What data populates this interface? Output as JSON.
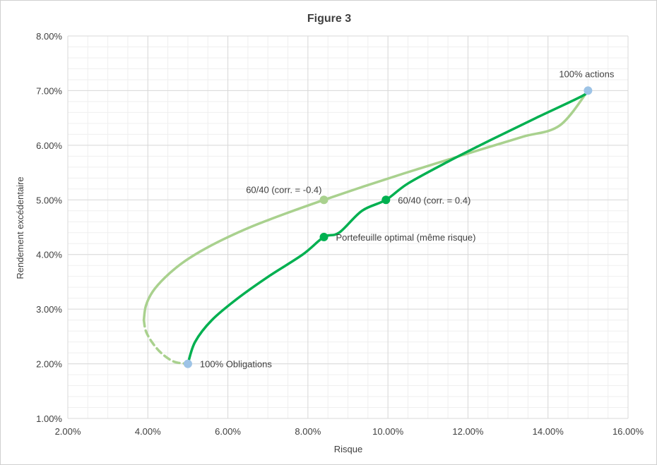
{
  "chart_data": {
    "type": "line",
    "title": "Figure 3",
    "xlabel": "Risque",
    "ylabel": "Rendement excédentaire",
    "xlim": [
      0.02,
      0.16
    ],
    "ylim": [
      0.01,
      0.08
    ],
    "x_ticks": [
      0.02,
      0.04,
      0.06,
      0.08,
      0.1,
      0.12,
      0.14,
      0.16
    ],
    "y_ticks": [
      0.01,
      0.02,
      0.03,
      0.04,
      0.05,
      0.06,
      0.07,
      0.08
    ],
    "x_tick_labels": [
      "2.00%",
      "4.00%",
      "6.00%",
      "8.00%",
      "10.00%",
      "12.00%",
      "14.00%",
      "16.00%"
    ],
    "y_tick_labels": [
      "1.00%",
      "2.00%",
      "3.00%",
      "4.00%",
      "5.00%",
      "6.00%",
      "7.00%",
      "8.00%"
    ],
    "grid": true,
    "colors": {
      "frontier_light": "#a9d18e",
      "frontier_dark": "#00b050",
      "endpoint": "#9dc3e6",
      "grid_major": "#d9d9d9",
      "grid_minor": "#efefef"
    },
    "series": [
      {
        "style": "solid",
        "color": "#a9d18e",
        "points": [
          [
            0.039,
            0.028
          ],
          [
            0.0395,
            0.0306
          ],
          [
            0.0412,
            0.0332
          ],
          [
            0.0443,
            0.0358
          ],
          [
            0.0485,
            0.0384
          ],
          [
            0.0532,
            0.0406
          ],
          [
            0.0589,
            0.0428
          ],
          [
            0.0662,
            0.0452
          ],
          [
            0.0748,
            0.0476
          ],
          [
            0.084,
            0.05
          ],
          [
            0.0937,
            0.0524
          ],
          [
            0.1038,
            0.0548
          ],
          [
            0.1143,
            0.0572
          ],
          [
            0.1249,
            0.0596
          ],
          [
            0.1339,
            0.0616
          ],
          [
            0.1429,
            0.0636
          ],
          [
            0.15,
            0.07
          ]
        ]
      },
      {
        "style": "dashed",
        "color": "#a9d18e",
        "points": [
          [
            0.039,
            0.028
          ],
          [
            0.0395,
            0.026
          ],
          [
            0.041,
            0.024
          ],
          [
            0.0433,
            0.022
          ],
          [
            0.0465,
            0.0204
          ],
          [
            0.05,
            0.02
          ]
        ]
      },
      {
        "style": "solid",
        "color": "#00b050",
        "points": [
          [
            0.05,
            0.02
          ],
          [
            0.0518,
            0.024
          ],
          [
            0.056,
            0.028
          ],
          [
            0.0625,
            0.032
          ],
          [
            0.0702,
            0.036
          ],
          [
            0.0787,
            0.04
          ],
          [
            0.084,
            0.0432
          ],
          [
            0.0878,
            0.044
          ],
          [
            0.0935,
            0.048
          ],
          [
            0.0995,
            0.05
          ],
          [
            0.105,
            0.053
          ],
          [
            0.115,
            0.057
          ],
          [
            0.1258,
            0.061
          ],
          [
            0.137,
            0.065
          ],
          [
            0.1485,
            0.069
          ],
          [
            0.15,
            0.07
          ]
        ]
      }
    ],
    "points": [
      {
        "name": "100% actions",
        "x": 0.15,
        "y": 0.07,
        "color": "#9dc3e6",
        "label": "100% actions",
        "label_pos": "above"
      },
      {
        "name": "100% Obligations",
        "x": 0.05,
        "y": 0.02,
        "color": "#9dc3e6",
        "label": "100% Obligations",
        "label_pos": "right"
      },
      {
        "name": "60/40 (corr. = -0.4)",
        "x": 0.084,
        "y": 0.05,
        "color": "#a9d18e",
        "label": "60/40 (corr. = -0.4)",
        "label_pos": "above-left"
      },
      {
        "name": "60/40 (corr. = 0.4)",
        "x": 0.0995,
        "y": 0.05,
        "color": "#00b050",
        "label": "60/40 (corr. = 0.4)",
        "label_pos": "right"
      },
      {
        "name": "Portefeuille optimal (même risque)",
        "x": 0.084,
        "y": 0.0432,
        "color": "#00b050",
        "label": "Portefeuille optimal (même risque)",
        "label_pos": "right"
      }
    ]
  }
}
